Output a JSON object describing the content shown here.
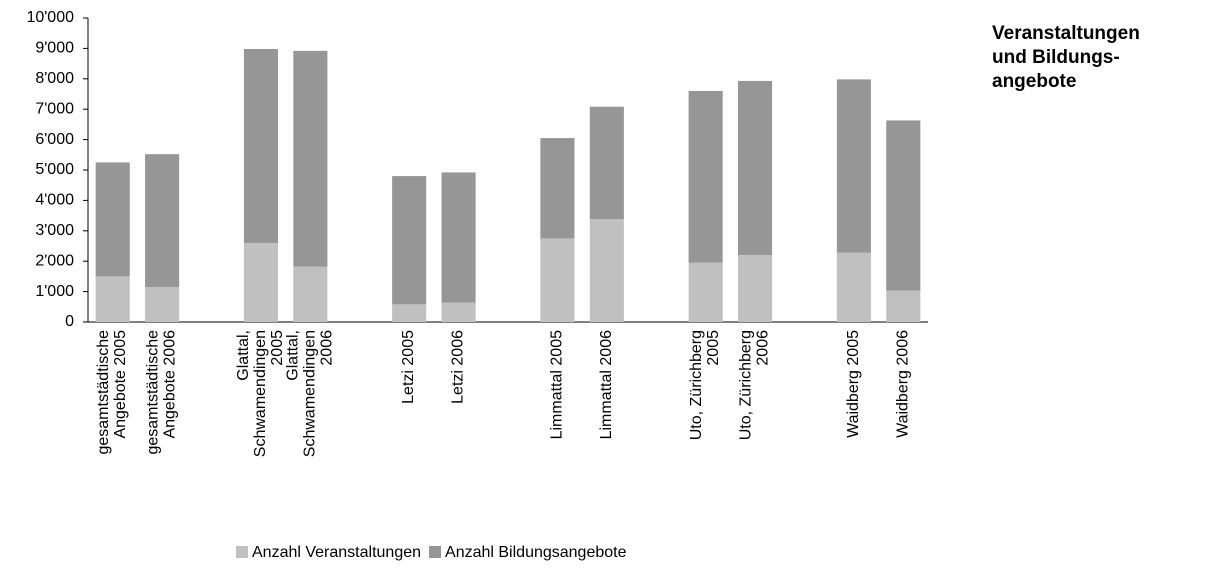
{
  "chart_data": {
    "type": "stacked_bar",
    "title": [
      "Veranstaltungen",
      "und Bildungs-",
      "angebote"
    ],
    "categories": [
      "gesamtstädtische Angebote 2005",
      "gesamtstädtische Angebote 2006",
      null,
      "Glattal, Schwamendingen 2005",
      "Glattal, Schwamendingen 2006",
      null,
      "Letzi 2005",
      "Letzi 2006",
      null,
      "Limmattal 2005",
      "Limmattal 2006",
      null,
      "Uto, Zürichberg 2005",
      "Uto, Zürichberg 2006",
      null,
      "Waidberg 2005",
      "Waidberg 2006"
    ],
    "series": [
      {
        "name": "Anzahl Veranstaltungen",
        "color": "#c0c0c0",
        "values": [
          1500,
          1150,
          null,
          2600,
          1820,
          null,
          580,
          640,
          null,
          2750,
          3380,
          null,
          1950,
          2200,
          null,
          2280,
          1030
        ]
      },
      {
        "name": "Anzahl Bildungsangebote",
        "color": "#969696",
        "values": [
          3750,
          4370,
          null,
          6380,
          7100,
          null,
          4220,
          4280,
          null,
          3300,
          3700,
          null,
          5650,
          5730,
          null,
          5700,
          5600
        ]
      }
    ],
    "ylim": [
      0,
      10000
    ],
    "yticks": [
      0,
      {
        "value": 1000,
        "label": "1'000"
      },
      {
        "value": 2000,
        "label": "2'000"
      },
      {
        "value": 3000,
        "label": "3'000"
      },
      {
        "value": 4000,
        "label": "4'000"
      },
      {
        "value": 5000,
        "label": "5'000"
      },
      {
        "value": 6000,
        "label": "6'000"
      },
      {
        "value": 7000,
        "label": "7'000"
      },
      {
        "value": 8000,
        "label": "8'000"
      },
      {
        "value": 9000,
        "label": "9'000"
      },
      {
        "value": 10000,
        "label": "10'000"
      }
    ],
    "grid": false,
    "legend": "bottom"
  }
}
